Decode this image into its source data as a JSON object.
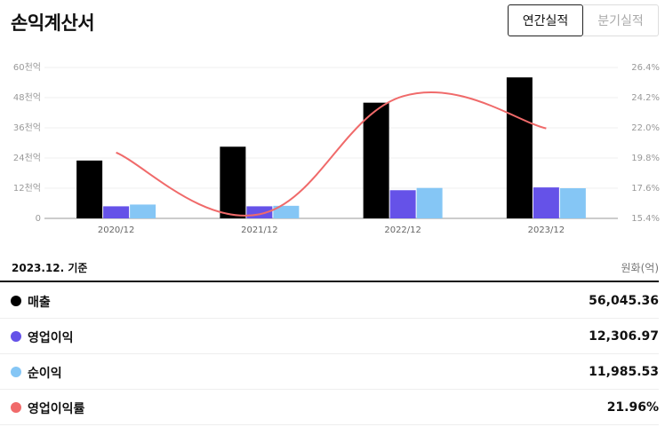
{
  "header": {
    "title": "손익계산서",
    "tabs": [
      {
        "label": "연간실적",
        "active": true
      },
      {
        "label": "분기실적",
        "active": false
      }
    ]
  },
  "chart_data": {
    "type": "bar",
    "categories": [
      "2020/12",
      "2021/12",
      "2022/12",
      "2023/12"
    ],
    "series": [
      {
        "name": "매출",
        "color": "#000000",
        "type": "bar",
        "axis": "left",
        "values": [
          23.0,
          28.5,
          46.0,
          56.05
        ]
      },
      {
        "name": "영업이익",
        "color": "#6552e8",
        "type": "bar",
        "axis": "left",
        "values": [
          4.8,
          4.8,
          11.2,
          12.31
        ]
      },
      {
        "name": "순이익",
        "color": "#85c6f5",
        "type": "bar",
        "axis": "left",
        "values": [
          5.5,
          5.0,
          12.1,
          11.99
        ]
      },
      {
        "name": "영업이익률",
        "color": "#f06a6a",
        "type": "line",
        "axis": "right",
        "values": [
          20.2,
          15.7,
          24.3,
          21.96
        ]
      }
    ],
    "yleft": {
      "ticks": [
        "0",
        "12천억",
        "24천억",
        "36천억",
        "48천억",
        "60천억"
      ],
      "lim": [
        0,
        60
      ]
    },
    "yright": {
      "ticks": [
        "15.4%",
        "17.6%",
        "19.8%",
        "22.0%",
        "24.2%",
        "26.4%"
      ],
      "lim": [
        15.4,
        26.4
      ]
    },
    "grid": true
  },
  "summary": {
    "basis": "2023.12. 기준",
    "unit": "원화(억)",
    "rows": [
      {
        "label": "매출",
        "value": "56,045.36",
        "color": "#000000"
      },
      {
        "label": "영업이익",
        "value": "12,306.97",
        "color": "#6552e8"
      },
      {
        "label": "순이익",
        "value": "11,985.53",
        "color": "#85c6f5"
      },
      {
        "label": "영업이익률",
        "value": "21.96%",
        "color": "#f06a6a"
      }
    ]
  }
}
